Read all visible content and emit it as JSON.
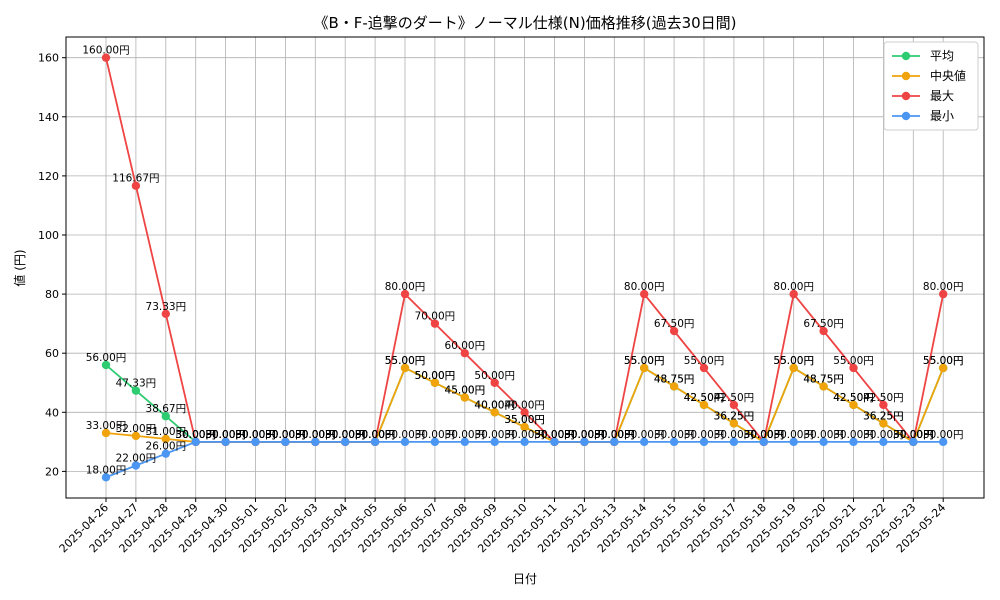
{
  "chart_data": {
    "type": "line",
    "title": "《B・F-追撃のダート》ノーマル仕様(N)価格推移(過去30日間)",
    "xlabel": "日付",
    "ylabel": "値 (円)",
    "ylim": [
      11,
      167
    ],
    "yticks": [
      20,
      40,
      60,
      80,
      100,
      120,
      140,
      160
    ],
    "grid": true,
    "legend_position": "top-right",
    "label_suffix": "円",
    "categories": [
      "2025-04-26",
      "2025-04-27",
      "2025-04-28",
      "2025-04-29",
      "2025-04-30",
      "2025-05-01",
      "2025-05-02",
      "2025-05-03",
      "2025-05-04",
      "2025-05-05",
      "2025-05-06",
      "2025-05-07",
      "2025-05-08",
      "2025-05-09",
      "2025-05-10",
      "2025-05-11",
      "2025-05-12",
      "2025-05-13",
      "2025-05-14",
      "2025-05-15",
      "2025-05-16",
      "2025-05-17",
      "2025-05-18",
      "2025-05-19",
      "2025-05-20",
      "2025-05-21",
      "2025-05-22",
      "2025-05-23",
      "2025-05-24"
    ],
    "series": [
      {
        "name": "平均",
        "color": "#2ecc71",
        "values": [
          56,
          47.33,
          38.67,
          30,
          30,
          30,
          30,
          30,
          30,
          30,
          55,
          50,
          45,
          40,
          35,
          30,
          30,
          30,
          55,
          48.75,
          42.5,
          36.25,
          30,
          55,
          48.75,
          42.5,
          36.25,
          30,
          55
        ]
      },
      {
        "name": "中央値",
        "color": "#f0a30a",
        "values": [
          33,
          32,
          31,
          30,
          30,
          30,
          30,
          30,
          30,
          30,
          55,
          50,
          45,
          40,
          35,
          30,
          30,
          30,
          55,
          48.75,
          42.5,
          36.25,
          30,
          55,
          48.75,
          42.5,
          36.25,
          30,
          55
        ]
      },
      {
        "name": "最大",
        "color": "#ef4444",
        "values": [
          160,
          116.67,
          73.33,
          30,
          30,
          30,
          30,
          30,
          30,
          30,
          80,
          70,
          60,
          50,
          40,
          30,
          30,
          30,
          80,
          67.5,
          55,
          42.5,
          30,
          80,
          67.5,
          55,
          42.5,
          30,
          80
        ]
      },
      {
        "name": "最小",
        "color": "#4b96f3",
        "values": [
          18,
          22,
          26,
          30,
          30,
          30,
          30,
          30,
          30,
          30,
          30,
          30,
          30,
          30,
          30,
          30,
          30,
          30,
          30,
          30,
          30,
          30,
          30,
          30,
          30,
          30,
          30,
          30,
          30
        ]
      }
    ]
  }
}
